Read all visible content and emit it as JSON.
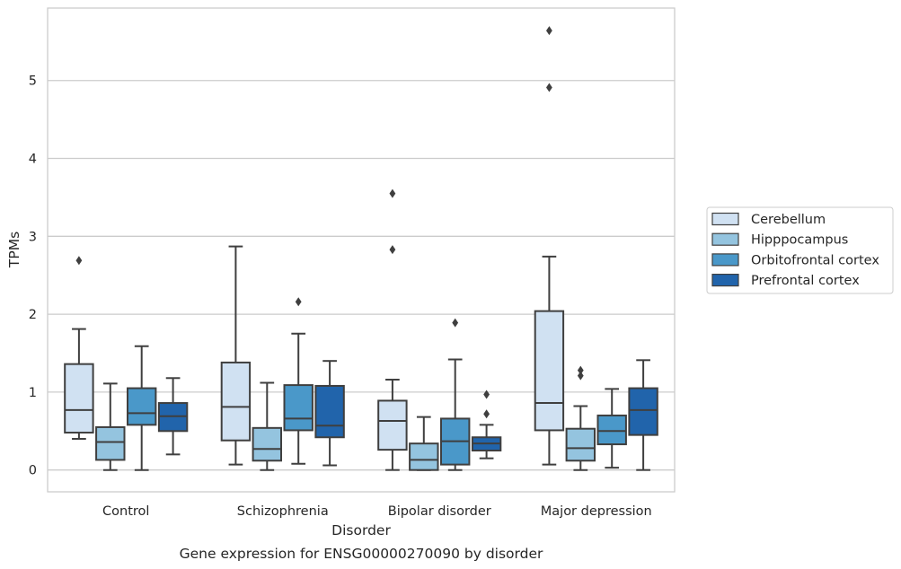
{
  "chart_data": {
    "type": "boxplot",
    "caption": "Gene expression for ENSG00000270090 by disorder",
    "xlabel": "Disorder",
    "ylabel": "TPMs",
    "ylim": [
      -0.28,
      5.93
    ],
    "yticks": [
      0,
      1,
      2,
      3,
      4,
      5
    ],
    "grid": "horizontal",
    "legend_position": "right",
    "categories": [
      "Control",
      "Schizophrenia",
      "Bipolar disorder",
      "Major depression"
    ],
    "series": [
      {
        "name": "Cerebellum",
        "color": "#d0e1f2",
        "boxes": [
          {
            "whislo": 0.4,
            "q1": 0.48,
            "med": 0.77,
            "q3": 1.36,
            "whishi": 1.81,
            "fliers": [
              2.69
            ]
          },
          {
            "whislo": 0.07,
            "q1": 0.38,
            "med": 0.81,
            "q3": 1.38,
            "whishi": 2.87,
            "fliers": []
          },
          {
            "whislo": 0.0,
            "q1": 0.26,
            "med": 0.63,
            "q3": 0.89,
            "whishi": 1.16,
            "fliers": [
              2.83,
              3.55
            ]
          },
          {
            "whislo": 0.07,
            "q1": 0.51,
            "med": 0.86,
            "q3": 2.04,
            "whishi": 2.74,
            "fliers": [
              4.91,
              5.64
            ]
          }
        ]
      },
      {
        "name": "Hipppocampus",
        "color": "#94c4df",
        "boxes": [
          {
            "whislo": 0.0,
            "q1": 0.13,
            "med": 0.36,
            "q3": 0.55,
            "whishi": 1.11,
            "fliers": []
          },
          {
            "whislo": 0.0,
            "q1": 0.12,
            "med": 0.27,
            "q3": 0.54,
            "whishi": 1.12,
            "fliers": []
          },
          {
            "whislo": 0.0,
            "q1": 0.0,
            "med": 0.13,
            "q3": 0.34,
            "whishi": 0.68,
            "fliers": []
          },
          {
            "whislo": 0.0,
            "q1": 0.12,
            "med": 0.28,
            "q3": 0.53,
            "whishi": 0.82,
            "fliers": [
              1.21,
              1.28
            ]
          }
        ]
      },
      {
        "name": "Orbitofrontal cortex",
        "color": "#4a98c9",
        "boxes": [
          {
            "whislo": 0.0,
            "q1": 0.58,
            "med": 0.73,
            "q3": 1.05,
            "whishi": 1.59,
            "fliers": []
          },
          {
            "whislo": 0.08,
            "q1": 0.51,
            "med": 0.66,
            "q3": 1.09,
            "whishi": 1.75,
            "fliers": [
              2.16
            ]
          },
          {
            "whislo": 0.0,
            "q1": 0.07,
            "med": 0.37,
            "q3": 0.66,
            "whishi": 1.42,
            "fliers": [
              1.89
            ]
          },
          {
            "whislo": 0.03,
            "q1": 0.33,
            "med": 0.5,
            "q3": 0.7,
            "whishi": 1.04,
            "fliers": []
          }
        ]
      },
      {
        "name": "Prefrontal cortex",
        "color": "#2164ab",
        "boxes": [
          {
            "whislo": 0.2,
            "q1": 0.5,
            "med": 0.69,
            "q3": 0.86,
            "whishi": 1.18,
            "fliers": []
          },
          {
            "whislo": 0.06,
            "q1": 0.42,
            "med": 0.57,
            "q3": 1.08,
            "whishi": 1.4,
            "fliers": []
          },
          {
            "whislo": 0.15,
            "q1": 0.25,
            "med": 0.34,
            "q3": 0.42,
            "whishi": 0.58,
            "fliers": [
              0.72,
              0.97
            ]
          },
          {
            "whislo": 0.0,
            "q1": 0.45,
            "med": 0.77,
            "q3": 1.05,
            "whishi": 1.41,
            "fliers": []
          }
        ]
      }
    ]
  }
}
